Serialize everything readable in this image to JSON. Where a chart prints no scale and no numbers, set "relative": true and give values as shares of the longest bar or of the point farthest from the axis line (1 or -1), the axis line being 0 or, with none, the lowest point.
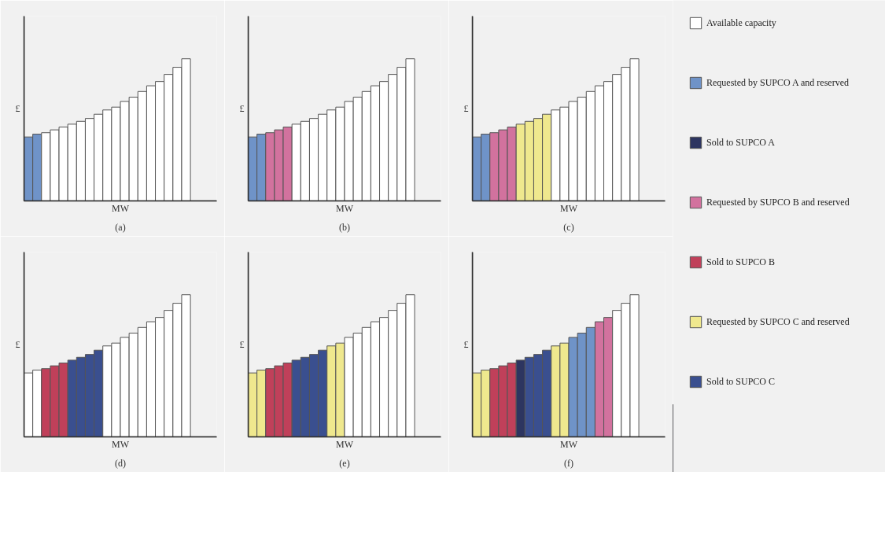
{
  "chart_data": [
    {
      "type": "bar",
      "title": "(a)",
      "xlabel": "MW",
      "ylabel": "£",
      "relative": true,
      "categories": [
        null,
        null,
        null,
        null,
        null,
        null,
        null,
        null,
        null,
        null,
        null,
        null,
        null,
        null,
        null,
        null,
        null,
        null,
        null
      ],
      "values": [
        0.45,
        0.47,
        0.48,
        0.5,
        0.52,
        0.54,
        0.56,
        0.58,
        0.61,
        0.64,
        0.66,
        0.7,
        0.73,
        0.77,
        0.81,
        0.84,
        0.89,
        0.94,
        1.0
      ],
      "colors": [
        "#6f93c8",
        "#6f93c8",
        "#ffffff",
        "#ffffff",
        "#ffffff",
        "#ffffff",
        "#ffffff",
        "#ffffff",
        "#ffffff",
        "#ffffff",
        "#ffffff",
        "#ffffff",
        "#ffffff",
        "#ffffff",
        "#ffffff",
        "#ffffff",
        "#ffffff",
        "#ffffff",
        "#ffffff"
      ]
    },
    {
      "type": "bar",
      "title": "(b)",
      "xlabel": "MW",
      "ylabel": "£",
      "relative": true,
      "categories": [
        null,
        null,
        null,
        null,
        null,
        null,
        null,
        null,
        null,
        null,
        null,
        null,
        null,
        null,
        null,
        null,
        null,
        null,
        null
      ],
      "values": [
        0.45,
        0.47,
        0.48,
        0.5,
        0.52,
        0.54,
        0.56,
        0.58,
        0.61,
        0.64,
        0.66,
        0.7,
        0.73,
        0.77,
        0.81,
        0.84,
        0.89,
        0.94,
        1.0
      ],
      "colors": [
        "#6f93c8",
        "#6f93c8",
        "#d2729e",
        "#d2729e",
        "#d2729e",
        "#ffffff",
        "#ffffff",
        "#ffffff",
        "#ffffff",
        "#ffffff",
        "#ffffff",
        "#ffffff",
        "#ffffff",
        "#ffffff",
        "#ffffff",
        "#ffffff",
        "#ffffff",
        "#ffffff",
        "#ffffff"
      ]
    },
    {
      "type": "bar",
      "title": "(c)",
      "xlabel": "MW",
      "ylabel": "£",
      "relative": true,
      "categories": [
        null,
        null,
        null,
        null,
        null,
        null,
        null,
        null,
        null,
        null,
        null,
        null,
        null,
        null,
        null,
        null,
        null,
        null,
        null
      ],
      "values": [
        0.45,
        0.47,
        0.48,
        0.5,
        0.52,
        0.54,
        0.56,
        0.58,
        0.61,
        0.64,
        0.66,
        0.7,
        0.73,
        0.77,
        0.81,
        0.84,
        0.89,
        0.94,
        1.0
      ],
      "colors": [
        "#6f93c8",
        "#6f93c8",
        "#d2729e",
        "#d2729e",
        "#d2729e",
        "#efe88e",
        "#efe88e",
        "#efe88e",
        "#efe88e",
        "#ffffff",
        "#ffffff",
        "#ffffff",
        "#ffffff",
        "#ffffff",
        "#ffffff",
        "#ffffff",
        "#ffffff",
        "#ffffff",
        "#ffffff"
      ]
    },
    {
      "type": "bar",
      "title": "(d)",
      "xlabel": "MW",
      "ylabel": "£",
      "relative": true,
      "categories": [
        null,
        null,
        null,
        null,
        null,
        null,
        null,
        null,
        null,
        null,
        null,
        null,
        null,
        null,
        null,
        null,
        null,
        null,
        null
      ],
      "values": [
        0.45,
        0.47,
        0.48,
        0.5,
        0.52,
        0.54,
        0.56,
        0.58,
        0.61,
        0.64,
        0.66,
        0.7,
        0.73,
        0.77,
        0.81,
        0.84,
        0.89,
        0.94,
        1.0
      ],
      "colors": [
        "#ffffff",
        "#ffffff",
        "#c0405a",
        "#c0405a",
        "#c0405a",
        "#3a4f8f",
        "#3a4f8f",
        "#3a4f8f",
        "#3a4f8f",
        "#ffffff",
        "#ffffff",
        "#ffffff",
        "#ffffff",
        "#ffffff",
        "#ffffff",
        "#ffffff",
        "#ffffff",
        "#ffffff",
        "#ffffff"
      ]
    },
    {
      "type": "bar",
      "title": "(e)",
      "xlabel": "MW",
      "ylabel": "£",
      "relative": true,
      "categories": [
        null,
        null,
        null,
        null,
        null,
        null,
        null,
        null,
        null,
        null,
        null,
        null,
        null,
        null,
        null,
        null,
        null,
        null,
        null
      ],
      "values": [
        0.45,
        0.47,
        0.48,
        0.5,
        0.52,
        0.54,
        0.56,
        0.58,
        0.61,
        0.64,
        0.66,
        0.7,
        0.73,
        0.77,
        0.81,
        0.84,
        0.89,
        0.94,
        1.0
      ],
      "colors": [
        "#efe88e",
        "#efe88e",
        "#c0405a",
        "#c0405a",
        "#c0405a",
        "#3a4f8f",
        "#3a4f8f",
        "#3a4f8f",
        "#3a4f8f",
        "#efe88e",
        "#efe88e",
        "#ffffff",
        "#ffffff",
        "#ffffff",
        "#ffffff",
        "#ffffff",
        "#ffffff",
        "#ffffff",
        "#ffffff"
      ]
    },
    {
      "type": "bar",
      "title": "(f)",
      "xlabel": "MW",
      "ylabel": "£",
      "relative": true,
      "categories": [
        null,
        null,
        null,
        null,
        null,
        null,
        null,
        null,
        null,
        null,
        null,
        null,
        null,
        null,
        null,
        null,
        null,
        null,
        null
      ],
      "values": [
        0.45,
        0.47,
        0.48,
        0.5,
        0.52,
        0.54,
        0.56,
        0.58,
        0.61,
        0.64,
        0.66,
        0.7,
        0.73,
        0.77,
        0.81,
        0.84,
        0.89,
        0.94,
        1.0
      ],
      "colors": [
        "#efe88e",
        "#efe88e",
        "#c0405a",
        "#c0405a",
        "#c0405a",
        "#2d3560",
        "#3a4f8f",
        "#3a4f8f",
        "#3a4f8f",
        "#efe88e",
        "#efe88e",
        "#6f93c8",
        "#6f93c8",
        "#6f93c8",
        "#d2729e",
        "#d2729e",
        "#ffffff",
        "#ffffff",
        "#ffffff"
      ]
    },
    {
      "type": "other",
      "categories": [
        "Available capacity",
        "Requested by SUPCO A and reserved",
        "Sold to SUPCO A",
        "Requested by SUPCO B and reserved",
        "Sold to SUPCO B",
        "Requested by SUPCO C and reserved",
        "Sold to SUPCO C"
      ],
      "colors": [
        "#ffffff",
        "#6f93c8",
        "#2d3560",
        "#d2729e",
        "#c0405a",
        "#efe88e",
        "#3a4f8f"
      ]
    }
  ]
}
